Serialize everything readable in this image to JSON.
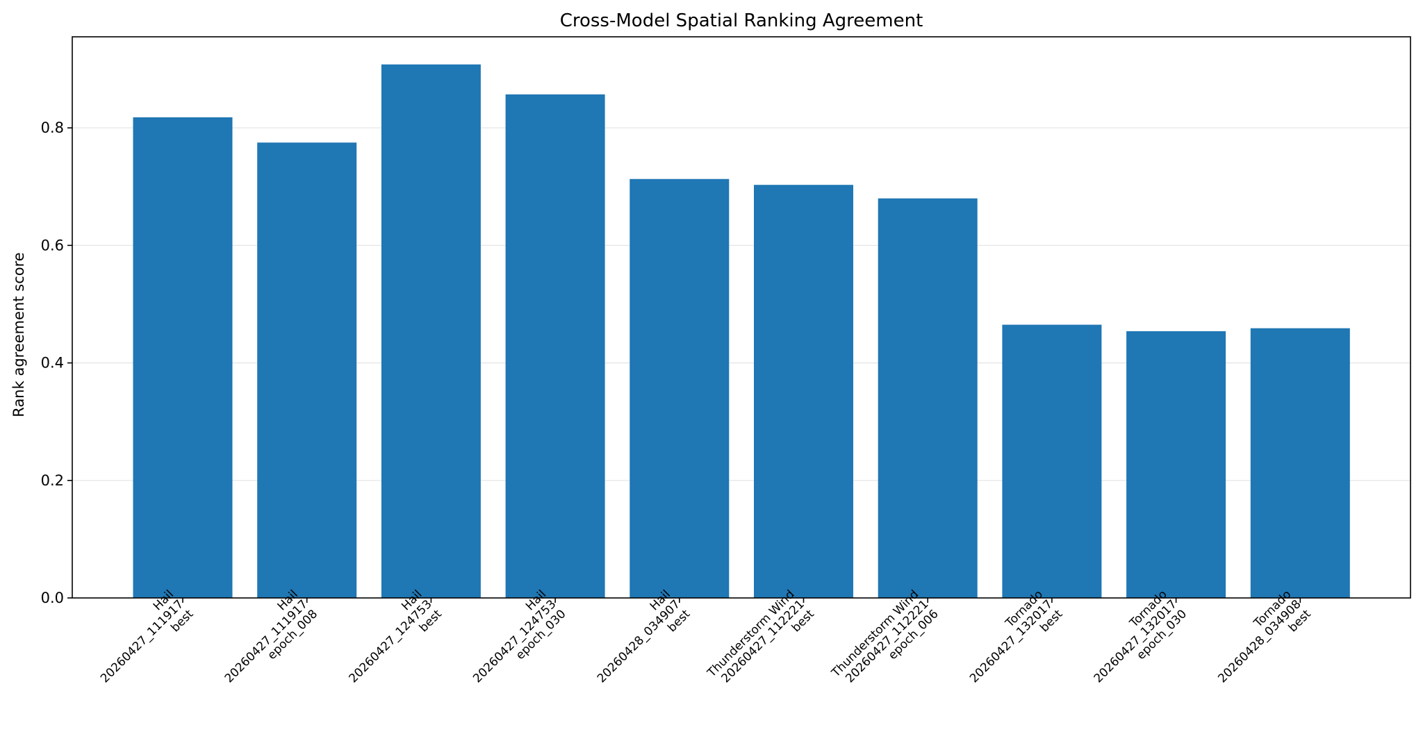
{
  "chart_data": {
    "type": "bar",
    "title": "Cross-Model Spatial Ranking Agreement",
    "xlabel": "",
    "ylabel": "Rank agreement score",
    "ylim": [
      0,
      0.955
    ],
    "yticks": [
      0.0,
      0.2,
      0.4,
      0.6,
      0.8
    ],
    "ytick_labels": [
      "0.0",
      "0.2",
      "0.4",
      "0.6",
      "0.8"
    ],
    "grid": "horizontal",
    "legend": "none",
    "bar_color": "#1f77b4",
    "grid_color": "#e6e6e6",
    "categories": [
      [
        "Hail",
        "20260427_111917",
        "best"
      ],
      [
        "Hail",
        "20260427_111917",
        "epoch_008"
      ],
      [
        "Hail",
        "20260427_124753",
        "best"
      ],
      [
        "Hail",
        "20260427_124753",
        "epoch_030"
      ],
      [
        "Hail",
        "20260428_034907",
        "best"
      ],
      [
        "Thunderstorm Wind",
        "20260427_112221",
        "best"
      ],
      [
        "Thunderstorm Wind",
        "20260427_112221",
        "epoch_006"
      ],
      [
        "Tornado",
        "20260427_132017",
        "best"
      ],
      [
        "Tornado",
        "20260427_132017",
        "epoch_030"
      ],
      [
        "Tornado",
        "20260428_034908",
        "best"
      ]
    ],
    "values": [
      0.818,
      0.775,
      0.908,
      0.857,
      0.713,
      0.703,
      0.68,
      0.465,
      0.454,
      0.459
    ]
  }
}
